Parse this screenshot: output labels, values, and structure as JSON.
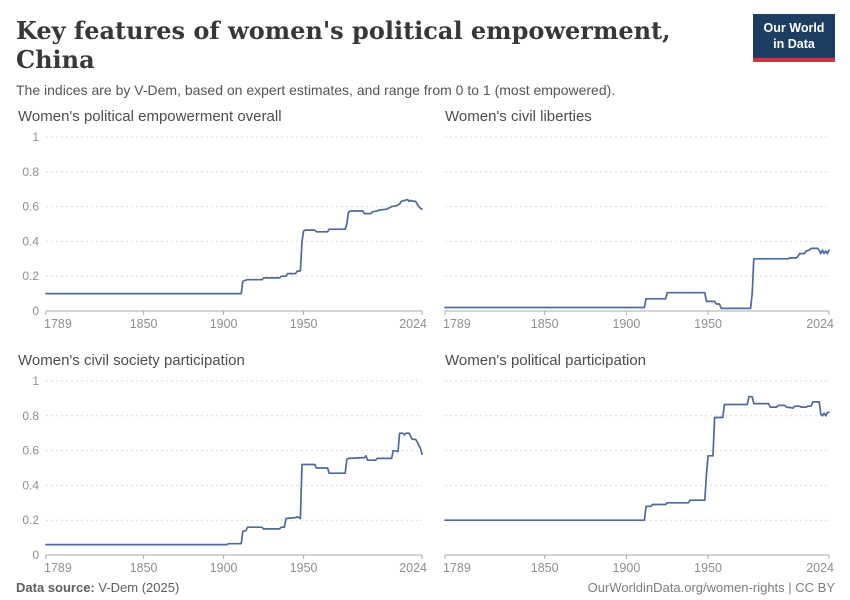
{
  "header": {
    "title": "Key features of women's political empowerment, China",
    "subtitle": "The indices are by V-Dem, based on expert estimates, and range from 0 to 1 (most empowered).",
    "logo": {
      "line1": "Our World",
      "line2": "in Data"
    }
  },
  "footer": {
    "source_label": "Data source:",
    "source_value": " V-Dem (2025)",
    "attribution": "OurWorldinData.org/women-rights | CC BY"
  },
  "colors": {
    "line": "#4c6a9c",
    "grid": "#dcdcdc",
    "axis": "#ababab",
    "tick_label": "#8f8f8f",
    "logo_bg": "#1d3d63",
    "logo_red": "#cf3541"
  },
  "chart_data": [
    {
      "type": "line",
      "title": "Women's political empowerment overall",
      "xlabel": "",
      "ylabel": "",
      "xlim": [
        1789,
        2024
      ],
      "ylim": [
        0,
        1
      ],
      "grid": true,
      "show_y_labels": true,
      "x_ticks": [
        1789,
        1850,
        1900,
        1950,
        2024
      ],
      "x_tick_labels": [
        "1789",
        "1850",
        "1900",
        "1950",
        "2024"
      ],
      "y_ticks": [
        0,
        0.2,
        0.4,
        0.6,
        0.8,
        1
      ],
      "y_tick_labels": [
        "0",
        "0.2",
        "0.4",
        "0.6",
        "0.8",
        "1"
      ],
      "series": [
        {
          "name": "China",
          "points": [
            [
              1789,
              0.1
            ],
            [
              1911,
              0.1
            ],
            [
              1912,
              0.17
            ],
            [
              1913,
              0.175
            ],
            [
              1915,
              0.18
            ],
            [
              1924,
              0.18
            ],
            [
              1925,
              0.19
            ],
            [
              1935,
              0.19
            ],
            [
              1936,
              0.2
            ],
            [
              1939,
              0.2
            ],
            [
              1940,
              0.215
            ],
            [
              1945,
              0.215
            ],
            [
              1946,
              0.23
            ],
            [
              1948,
              0.23
            ],
            [
              1949,
              0.4
            ],
            [
              1950,
              0.46
            ],
            [
              1951,
              0.465
            ],
            [
              1957,
              0.465
            ],
            [
              1958,
              0.455
            ],
            [
              1965,
              0.455
            ],
            [
              1966,
              0.47
            ],
            [
              1976,
              0.47
            ],
            [
              1977,
              0.5
            ],
            [
              1978,
              0.565
            ],
            [
              1979,
              0.575
            ],
            [
              1987,
              0.575
            ],
            [
              1988,
              0.56
            ],
            [
              1992,
              0.56
            ],
            [
              1993,
              0.57
            ],
            [
              1996,
              0.575
            ],
            [
              1997,
              0.58
            ],
            [
              2002,
              0.585
            ],
            [
              2005,
              0.6
            ],
            [
              2008,
              0.605
            ],
            [
              2010,
              0.615
            ],
            [
              2011,
              0.63
            ],
            [
              2013,
              0.635
            ],
            [
              2015,
              0.64
            ],
            [
              2016,
              0.63
            ],
            [
              2017,
              0.635
            ],
            [
              2019,
              0.63
            ],
            [
              2020,
              0.63
            ],
            [
              2021,
              0.615
            ],
            [
              2022,
              0.6
            ],
            [
              2023,
              0.59
            ],
            [
              2024,
              0.585
            ]
          ]
        }
      ]
    },
    {
      "type": "line",
      "title": "Women's civil liberties",
      "xlabel": "",
      "ylabel": "",
      "xlim": [
        1789,
        2024
      ],
      "ylim": [
        0,
        1
      ],
      "grid": true,
      "show_y_labels": false,
      "x_ticks": [
        1789,
        1850,
        1900,
        1950,
        2024
      ],
      "x_tick_labels": [
        "1789",
        "1850",
        "1900",
        "1950",
        "2024"
      ],
      "y_ticks": [
        0,
        0.2,
        0.4,
        0.6,
        0.8,
        1
      ],
      "y_tick_labels": [
        "0",
        "0.2",
        "0.4",
        "0.6",
        "0.8",
        "1"
      ],
      "series": [
        {
          "name": "China",
          "points": [
            [
              1789,
              0.02
            ],
            [
              1911,
              0.02
            ],
            [
              1912,
              0.07
            ],
            [
              1924,
              0.07
            ],
            [
              1925,
              0.105
            ],
            [
              1948,
              0.105
            ],
            [
              1949,
              0.055
            ],
            [
              1954,
              0.055
            ],
            [
              1955,
              0.04
            ],
            [
              1957,
              0.04
            ],
            [
              1958,
              0.015
            ],
            [
              1976,
              0.015
            ],
            [
              1977,
              0.1
            ],
            [
              1978,
              0.3
            ],
            [
              1999,
              0.3
            ],
            [
              2000,
              0.305
            ],
            [
              2004,
              0.305
            ],
            [
              2005,
              0.315
            ],
            [
              2006,
              0.33
            ],
            [
              2009,
              0.33
            ],
            [
              2010,
              0.345
            ],
            [
              2012,
              0.35
            ],
            [
              2013,
              0.36
            ],
            [
              2017,
              0.36
            ],
            [
              2018,
              0.35
            ],
            [
              2019,
              0.33
            ],
            [
              2020,
              0.35
            ],
            [
              2021,
              0.33
            ],
            [
              2022,
              0.345
            ],
            [
              2023,
              0.33
            ],
            [
              2024,
              0.35
            ]
          ]
        }
      ]
    },
    {
      "type": "line",
      "title": "Women's civil society participation",
      "xlabel": "",
      "ylabel": "",
      "xlim": [
        1789,
        2024
      ],
      "ylim": [
        0,
        1
      ],
      "grid": true,
      "show_y_labels": true,
      "x_ticks": [
        1789,
        1850,
        1900,
        1950,
        2024
      ],
      "x_tick_labels": [
        "1789",
        "1850",
        "1900",
        "1950",
        "2024"
      ],
      "y_ticks": [
        0,
        0.2,
        0.4,
        0.6,
        0.8,
        1
      ],
      "y_tick_labels": [
        "0",
        "0.2",
        "0.4",
        "0.6",
        "0.8",
        "1"
      ],
      "series": [
        {
          "name": "China",
          "points": [
            [
              1789,
              0.06
            ],
            [
              1902,
              0.06
            ],
            [
              1903,
              0.065
            ],
            [
              1911,
              0.065
            ],
            [
              1912,
              0.135
            ],
            [
              1914,
              0.14
            ],
            [
              1915,
              0.16
            ],
            [
              1924,
              0.16
            ],
            [
              1925,
              0.15
            ],
            [
              1935,
              0.15
            ],
            [
              1936,
              0.16
            ],
            [
              1938,
              0.16
            ],
            [
              1939,
              0.21
            ],
            [
              1945,
              0.215
            ],
            [
              1946,
              0.22
            ],
            [
              1947,
              0.215
            ],
            [
              1948,
              0.21
            ],
            [
              1949,
              0.52
            ],
            [
              1957,
              0.52
            ],
            [
              1958,
              0.5
            ],
            [
              1965,
              0.5
            ],
            [
              1966,
              0.47
            ],
            [
              1976,
              0.47
            ],
            [
              1977,
              0.55
            ],
            [
              1978,
              0.555
            ],
            [
              1988,
              0.56
            ],
            [
              1989,
              0.57
            ],
            [
              1990,
              0.545
            ],
            [
              1995,
              0.545
            ],
            [
              1996,
              0.555
            ],
            [
              2005,
              0.555
            ],
            [
              2006,
              0.6
            ],
            [
              2009,
              0.595
            ],
            [
              2010,
              0.7
            ],
            [
              2012,
              0.7
            ],
            [
              2013,
              0.69
            ],
            [
              2014,
              0.7
            ],
            [
              2016,
              0.7
            ],
            [
              2017,
              0.68
            ],
            [
              2018,
              0.665
            ],
            [
              2020,
              0.665
            ],
            [
              2021,
              0.65
            ],
            [
              2022,
              0.63
            ],
            [
              2023,
              0.615
            ],
            [
              2024,
              0.58
            ]
          ]
        }
      ]
    },
    {
      "type": "line",
      "title": "Women's political participation",
      "xlabel": "",
      "ylabel": "",
      "xlim": [
        1789,
        2024
      ],
      "ylim": [
        0,
        1
      ],
      "grid": true,
      "show_y_labels": false,
      "x_ticks": [
        1789,
        1850,
        1900,
        1950,
        2024
      ],
      "x_tick_labels": [
        "1789",
        "1850",
        "1900",
        "1950",
        "2024"
      ],
      "y_ticks": [
        0,
        0.2,
        0.4,
        0.6,
        0.8,
        1
      ],
      "y_tick_labels": [
        "0",
        "0.2",
        "0.4",
        "0.6",
        "0.8",
        "1"
      ],
      "series": [
        {
          "name": "China",
          "points": [
            [
              1789,
              0.2
            ],
            [
              1911,
              0.2
            ],
            [
              1912,
              0.28
            ],
            [
              1915,
              0.28
            ],
            [
              1916,
              0.29
            ],
            [
              1924,
              0.29
            ],
            [
              1925,
              0.3
            ],
            [
              1938,
              0.3
            ],
            [
              1939,
              0.315
            ],
            [
              1948,
              0.315
            ],
            [
              1949,
              0.46
            ],
            [
              1950,
              0.57
            ],
            [
              1953,
              0.57
            ],
            [
              1954,
              0.79
            ],
            [
              1959,
              0.79
            ],
            [
              1960,
              0.865
            ],
            [
              1974,
              0.865
            ],
            [
              1975,
              0.91
            ],
            [
              1977,
              0.91
            ],
            [
              1978,
              0.87
            ],
            [
              1987,
              0.87
            ],
            [
              1988,
              0.85
            ],
            [
              1992,
              0.85
            ],
            [
              1993,
              0.86
            ],
            [
              1997,
              0.86
            ],
            [
              1998,
              0.85
            ],
            [
              2002,
              0.845
            ],
            [
              2003,
              0.855
            ],
            [
              2006,
              0.855
            ],
            [
              2007,
              0.85
            ],
            [
              2010,
              0.85
            ],
            [
              2011,
              0.855
            ],
            [
              2013,
              0.855
            ],
            [
              2014,
              0.88
            ],
            [
              2018,
              0.88
            ],
            [
              2019,
              0.81
            ],
            [
              2020,
              0.8
            ],
            [
              2021,
              0.815
            ],
            [
              2022,
              0.8
            ],
            [
              2023,
              0.82
            ],
            [
              2024,
              0.82
            ]
          ]
        }
      ]
    }
  ]
}
